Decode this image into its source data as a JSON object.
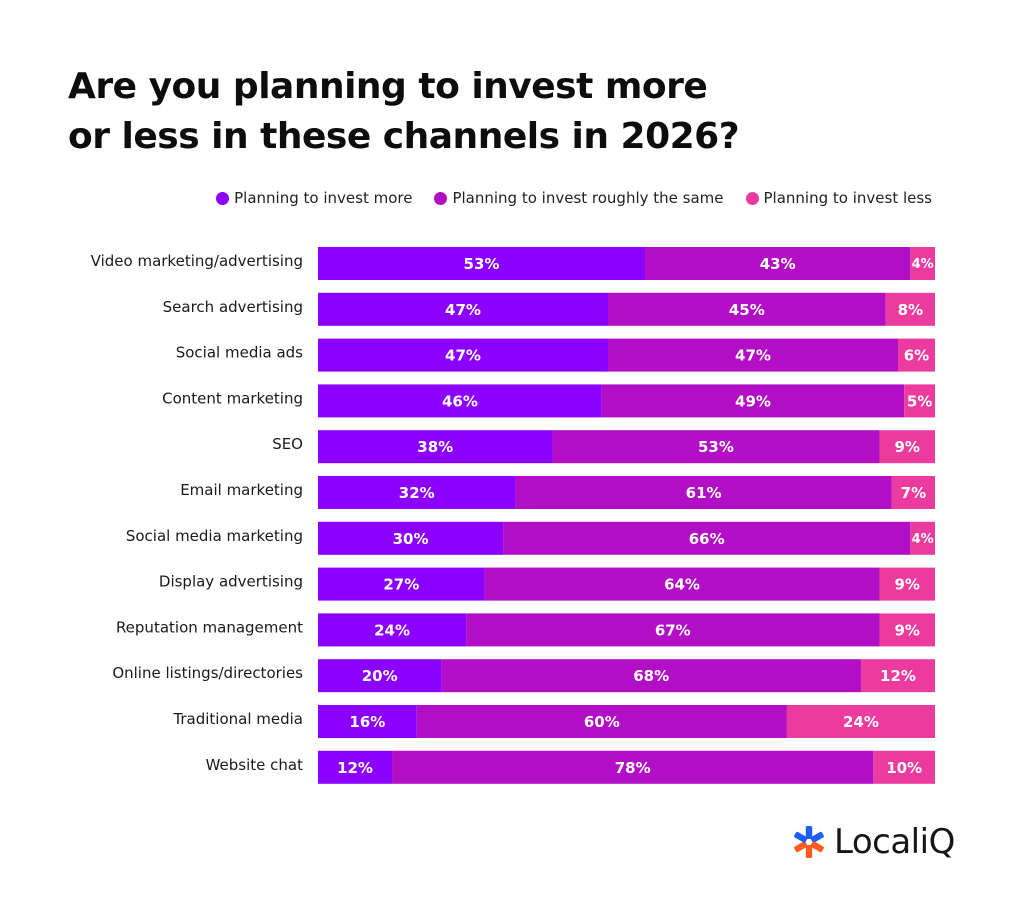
{
  "title_lines": [
    "Are you planning to invest more",
    "or less in these channels in 2026?"
  ],
  "brand": {
    "name": "LocaliQ",
    "icon": "localiq-asterisk-logo-icon"
  },
  "colors": {
    "more": "#8b00ff",
    "same": "#b10ec5",
    "less": "#ec3b9e",
    "brand_blue": "#1e5eff",
    "brand_orange": "#ff5a1f"
  },
  "chart_data": {
    "type": "bar",
    "orientation": "horizontal",
    "stacked": true,
    "categories": [
      "Video marketing/advertising",
      "Search advertising",
      "Social media ads",
      "Content marketing",
      "SEO",
      "Email marketing",
      "Social media marketing",
      "Display advertising",
      "Reputation management",
      "Online listings/directories",
      "Traditional media",
      "Website chat"
    ],
    "series": [
      {
        "name": "Planning to invest more",
        "color": "#8b00ff",
        "values": [
          53,
          47,
          47,
          46,
          38,
          32,
          30,
          27,
          24,
          20,
          16,
          12
        ]
      },
      {
        "name": "Planning to invest roughly the same",
        "color": "#b10ec5",
        "values": [
          43,
          45,
          47,
          49,
          53,
          61,
          66,
          64,
          67,
          68,
          60,
          78
        ]
      },
      {
        "name": "Planning to invest less",
        "color": "#ec3b9e",
        "values": [
          4,
          8,
          6,
          5,
          9,
          7,
          4,
          9,
          9,
          12,
          24,
          10
        ]
      }
    ],
    "value_suffix": "%",
    "legend_position": "top-right",
    "grid": false
  }
}
